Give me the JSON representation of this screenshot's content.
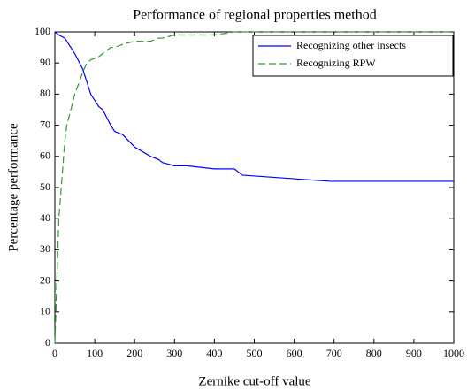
{
  "chart_data": {
    "type": "line",
    "title": "Performance of regional properties method",
    "x_label": "Zernike cut-off value",
    "y_label": "Percentage performance",
    "x": [
      0,
      10,
      25,
      30,
      50,
      70,
      80,
      90,
      110,
      120,
      140,
      150,
      170,
      200,
      240,
      260,
      270,
      300,
      330,
      400,
      450,
      470,
      580,
      690,
      1000
    ],
    "series": [
      {
        "name": "Recognizing other insects",
        "color": "#0000ff",
        "dash": "solid",
        "values": [
          100,
          99,
          98,
          97,
          93,
          88,
          84,
          80,
          76,
          75,
          70,
          68,
          67,
          63,
          60,
          59,
          58,
          57,
          57,
          56,
          56,
          54,
          53,
          52,
          52
        ]
      },
      {
        "name": "Recognizing RPW",
        "color": "#2e9a2e",
        "dash": "dashed",
        "values": [
          0,
          40,
          65,
          70,
          80,
          87,
          90,
          91,
          92,
          93,
          95,
          95,
          96,
          97,
          97,
          98,
          98,
          99,
          99,
          99,
          100,
          100,
          100,
          100,
          100
        ]
      }
    ],
    "xlim": [
      0,
      1000
    ],
    "xticks": [
      0,
      100,
      200,
      300,
      400,
      500,
      600,
      700,
      800,
      900,
      1000
    ],
    "ylim": [
      0,
      100
    ],
    "yticks": [
      0,
      10,
      20,
      30,
      40,
      50,
      60,
      70,
      80,
      90,
      100
    ],
    "legend": "upper right",
    "grid": false
  }
}
